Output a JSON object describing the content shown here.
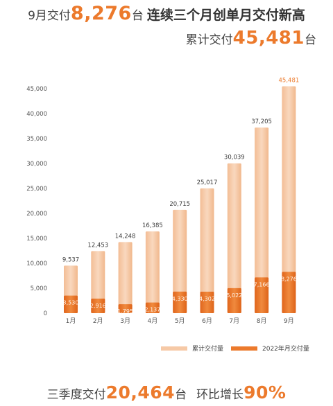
{
  "header": {
    "line1_prefix": "9月交付",
    "line1_number": "8,276",
    "line1_unit": "台",
    "line1_suffix": "连续三个月创单月交付新高",
    "line2_prefix": "累计交付",
    "line2_number": "45,481",
    "line2_unit": "台"
  },
  "footer": {
    "q_prefix": "三季度交付",
    "q_number": "20,464",
    "q_unit": "台",
    "growth_prefix": "环比增长",
    "growth_number": "90%"
  },
  "colors": {
    "cumulative_bar": "#f6c9a6",
    "monthly_bar": "#ec7a2c",
    "axis_text": "#555555",
    "accent": "#ec7a2c"
  },
  "chart_data": {
    "type": "bar",
    "categories": [
      "1月",
      "2月",
      "3月",
      "4月",
      "5月",
      "6月",
      "7月",
      "8月",
      "9月"
    ],
    "series": [
      {
        "name": "累计交付量",
        "values": [
          9537,
          12453,
          14248,
          16385,
          20715,
          25017,
          30039,
          37205,
          45481
        ]
      },
      {
        "name": "2022年月交付量",
        "values": [
          3530,
          2916,
          1795,
          2137,
          4330,
          4302,
          5022,
          7166,
          8276
        ]
      }
    ],
    "yticks": [
      "0",
      "5,000",
      "10,000",
      "15,000",
      "20,000",
      "25,000",
      "30,000",
      "35,000",
      "40,000",
      "45,000"
    ],
    "ylim": [
      0,
      45000
    ],
    "cumulative_labels": [
      "9,537",
      "12,453",
      "14,248",
      "16,385",
      "20,715",
      "25,017",
      "30,039",
      "37,205",
      "45,481"
    ],
    "monthly_labels": [
      "3,530",
      "2,916",
      "1,795",
      "2,137",
      "4,330",
      "4,302",
      "5,022",
      "7,166",
      "8,276"
    ],
    "legend": [
      "累计交付量",
      "2022年月交付量"
    ],
    "legend_position": "bottom-right",
    "grid": false
  }
}
